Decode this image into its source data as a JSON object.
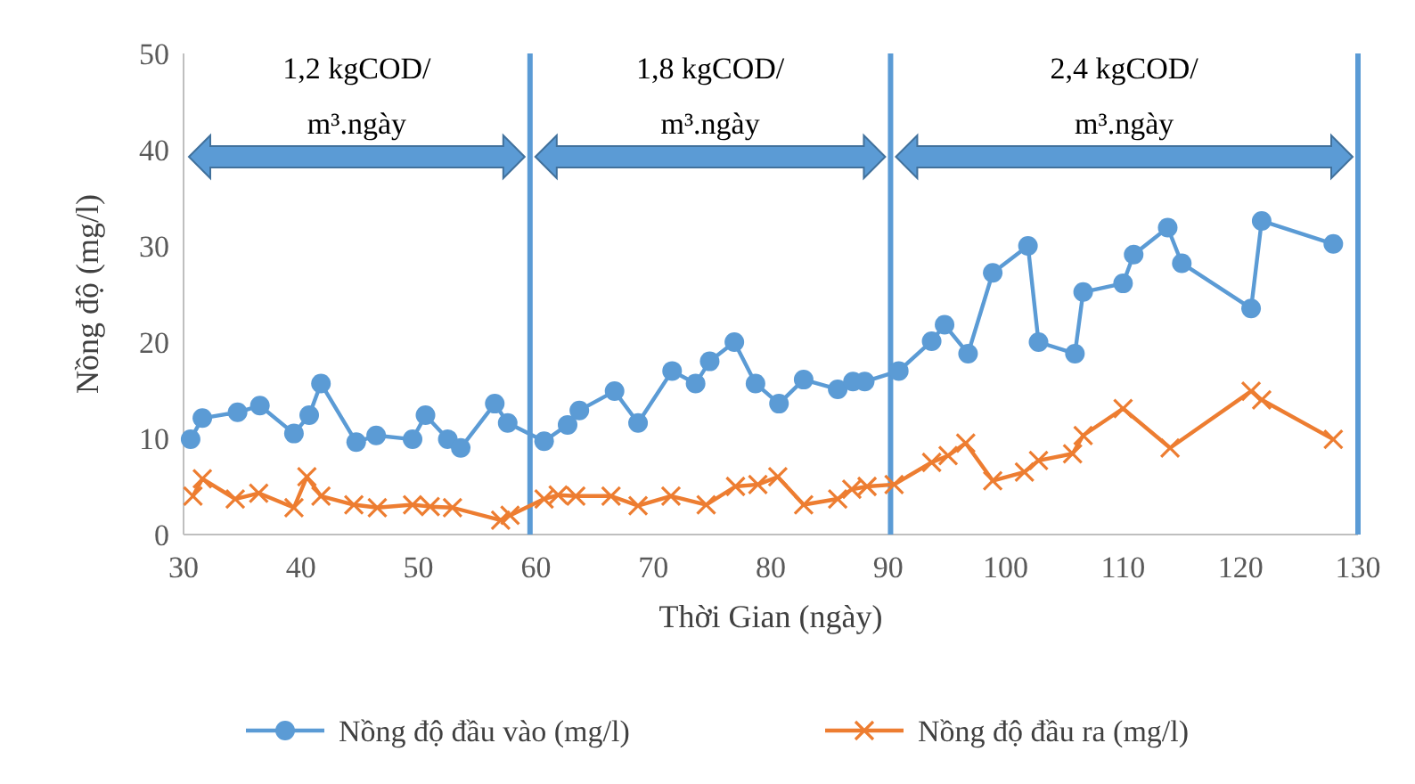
{
  "chart_data": {
    "type": "line",
    "xlabel": "Thời Gian (ngày)",
    "ylabel": "Nồng độ (mg/l)",
    "xlim": [
      30,
      130
    ],
    "xticks": [
      30,
      40,
      50,
      60,
      70,
      80,
      90,
      100,
      110,
      120,
      130
    ],
    "ylim": [
      0,
      50
    ],
    "yticks": [
      0,
      10,
      20,
      30,
      40,
      50
    ],
    "grid": false,
    "legend": "bottom",
    "series": [
      {
        "name": "Nồng độ đầu vào (mg/l)",
        "color": "#5b9bd5",
        "marker": "circle",
        "x": [
          30.6,
          31.6,
          34.6,
          36.5,
          39.4,
          40.7,
          41.7,
          44.7,
          46.4,
          49.5,
          50.6,
          52.5,
          53.6,
          56.5,
          57.6,
          60.7,
          62.7,
          63.7,
          66.7,
          68.7,
          71.6,
          73.6,
          74.8,
          76.9,
          78.7,
          80.7,
          82.8,
          85.7,
          87,
          88,
          90.9,
          93.7,
          94.8,
          96.8,
          98.9,
          101.9,
          102.8,
          105.9,
          106.6,
          110,
          110.9,
          113.8,
          115,
          120.9,
          121.8,
          127.9
        ],
        "values": [
          9.9,
          12.1,
          12.7,
          13.4,
          10.5,
          12.4,
          15.7,
          9.6,
          10.3,
          9.9,
          12.4,
          9.9,
          9,
          13.6,
          11.6,
          9.7,
          11.4,
          12.9,
          14.9,
          11.6,
          17,
          15.7,
          18,
          20,
          15.7,
          13.6,
          16.1,
          15.1,
          15.9,
          15.9,
          17,
          20.1,
          21.8,
          18.8,
          27.2,
          30,
          20,
          18.8,
          25.2,
          26.1,
          29.1,
          31.9,
          28.2,
          23.5,
          32.6,
          30.2
        ]
      },
      {
        "name": "Nồng độ đầu ra (mg/l)",
        "color": "#ed7d31",
        "marker": "cross",
        "x": [
          30.8,
          31.6,
          34.4,
          36.4,
          39.4,
          40.5,
          41.7,
          44.5,
          46.5,
          49.5,
          51,
          52.9,
          57,
          57.8,
          60.7,
          61.9,
          63.4,
          66.4,
          68.7,
          71.5,
          74.5,
          77,
          78.9,
          80.6,
          82.8,
          85.7,
          86.9,
          88.2,
          90.5,
          93.7,
          95.1,
          96.6,
          98.9,
          101.6,
          102.8,
          105.7,
          106.6,
          110,
          114,
          120.9,
          121.8,
          127.9
        ],
        "values": [
          4,
          5.8,
          3.7,
          4.3,
          2.8,
          6,
          4,
          3.1,
          2.8,
          3.1,
          2.9,
          2.8,
          1.5,
          2,
          3.7,
          4.1,
          4,
          4,
          3,
          4,
          3.1,
          5,
          5.2,
          6,
          3.1,
          3.7,
          4.7,
          5,
          5.2,
          7.5,
          8.2,
          9.5,
          5.6,
          6.5,
          7.7,
          8.4,
          10.3,
          13.1,
          9,
          14.9,
          14,
          9.9
        ]
      }
    ],
    "ref_lines": [
      {
        "axis": "x",
        "value": 59.5,
        "color": "#5b9bd5"
      },
      {
        "axis": "x",
        "value": 90.2,
        "color": "#5b9bd5"
      },
      {
        "axis": "x",
        "value": 130,
        "color": "#5b9bd5"
      }
    ],
    "annotations": [
      "1,2 kgCOD/m³.ngày",
      "1,8 kgCOD/m³.ngày",
      "2,4 kgCOD/m³.ngày"
    ]
  }
}
